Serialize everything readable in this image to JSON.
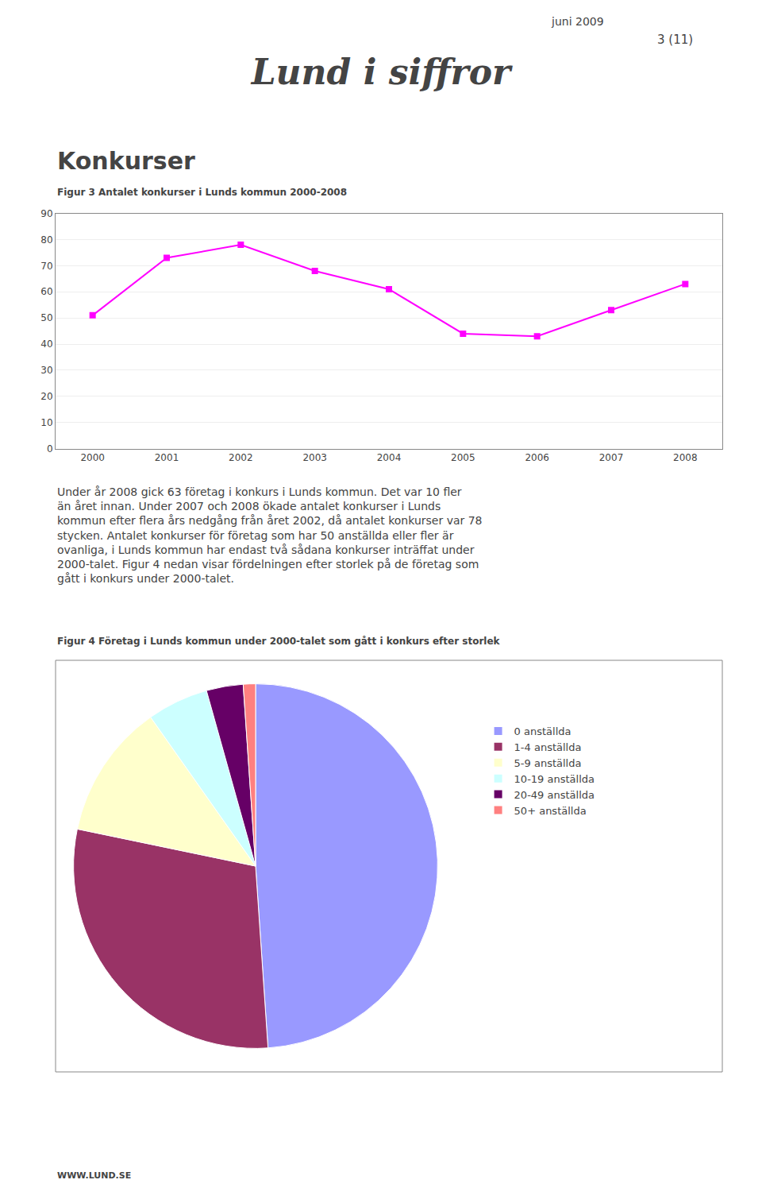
{
  "title": "Lund i siffror",
  "subtitle": "Konkurser",
  "header": [
    "juni 2009",
    "3 (11)"
  ],
  "body": [
    "Under år 2008 gick 63 företag i konkurs i Lunds kommun. Det var 10 fler",
    "än året innan. Under 2007 och 2008 ökade antalet konkurser i Lunds",
    "kommun efter flera års nedgång från året 2002, då antalet konkurser var 78",
    "stycken. Antalet konkurser för företag som har 50 anställda eller fler är",
    "ovanliga, i Lunds kommun har endast två sådana konkurser inträffat under",
    "2000-talet. Figur 4 nedan visar fördelningen efter storlek på de företag som",
    "gått i konkurs under 2000-talet."
  ],
  "footer": "WWW.LUND.SE",
  "chart_data": [
    {
      "type": "line",
      "title": "Figur 3 Antalet konkurser i Lunds kommun 2000-2008",
      "x": [
        2000,
        2001,
        2002,
        2003,
        2004,
        2005,
        2006,
        2007,
        2008
      ],
      "values": [
        51,
        73,
        78,
        68,
        61,
        44,
        43,
        53,
        63
      ],
      "color": "#FF00FF",
      "marker": "square",
      "xlim": [
        1999.5,
        2008.5
      ],
      "xticks": [
        2000,
        2001,
        2002,
        2003,
        2004,
        2005,
        2006,
        2007,
        2008
      ],
      "ylim": [
        0,
        90
      ],
      "yticks": [
        0,
        10,
        20,
        30,
        40,
        50,
        60,
        70,
        80,
        90
      ],
      "grid": "y"
    },
    {
      "type": "pie",
      "title": "Figur 4 Företag i Lunds kommun under 2000-talet som gått i konkurs efter storlek",
      "categories": [
        "0 anställda",
        "1-4 anställda",
        "5-9 anställda",
        "10-19 anställda",
        "20-49 anställda",
        "50+ anställda"
      ],
      "values": [
        45,
        27,
        11,
        5,
        3,
        1
      ],
      "colors": [
        "#9999FF",
        "#993366",
        "#FFFFCC",
        "#CCFFFF",
        "#660066",
        "#FF8080"
      ],
      "legend": "right"
    }
  ]
}
